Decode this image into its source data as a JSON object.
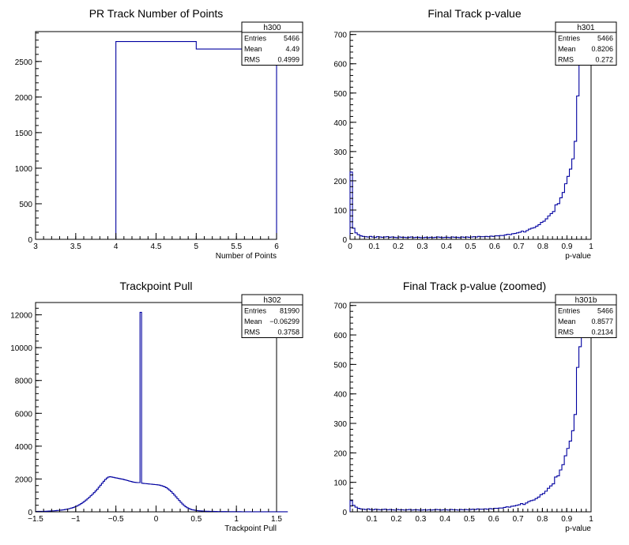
{
  "chart_data": [
    {
      "type": "histogram",
      "title": "PR Track Number of Points",
      "xlabel": "Number of Points",
      "ylabel": "",
      "xlim": [
        3,
        6
      ],
      "ylim": [
        0,
        2920
      ],
      "xticks": [
        "3",
        "3.5",
        "4",
        "4.5",
        "5",
        "5.5",
        "6"
      ],
      "yticks": [
        "0",
        "500",
        "1000",
        "1500",
        "2000",
        "2500"
      ],
      "bins": [
        {
          "x0": 4,
          "x1": 5,
          "count": 2780
        },
        {
          "x0": 5,
          "x1": 6,
          "count": 2675
        }
      ],
      "stats": {
        "name": "h300",
        "entries": "5466",
        "mean": "4.49",
        "rms": "0.4999"
      }
    },
    {
      "type": "histogram",
      "title": "Final Track p-value",
      "xlabel": "p-value",
      "ylabel": "",
      "xlim": [
        0,
        1
      ],
      "ylim": [
        0,
        710
      ],
      "xticks": [
        "0",
        "0.1",
        "0.2",
        "0.3",
        "0.4",
        "0.5",
        "0.6",
        "0.7",
        "0.8",
        "0.9",
        "1"
      ],
      "yticks": [
        "0",
        "100",
        "200",
        "300",
        "400",
        "500",
        "600",
        "700"
      ],
      "bin_width": 0.01,
      "counts": [
        230,
        38,
        22,
        16,
        12,
        10,
        9,
        8,
        10,
        8,
        7,
        9,
        8,
        7,
        8,
        9,
        7,
        8,
        7,
        6,
        8,
        7,
        7,
        6,
        7,
        8,
        6,
        7,
        7,
        6,
        6,
        7,
        6,
        7,
        6,
        7,
        8,
        7,
        6,
        7,
        7,
        6,
        8,
        7,
        7,
        6,
        8,
        7,
        8,
        7,
        8,
        9,
        8,
        10,
        9,
        9,
        10,
        9,
        11,
        10,
        12,
        12,
        13,
        13,
        15,
        17,
        16,
        19,
        20,
        22,
        24,
        28,
        25,
        30,
        35,
        38,
        40,
        45,
        50,
        58,
        62,
        70,
        80,
        88,
        95,
        118,
        122,
        142,
        160,
        190,
        215,
        240,
        275,
        335,
        490,
        600,
        760,
        760,
        760,
        760
      ],
      "stats": {
        "name": "h301",
        "entries": "5466",
        "mean": "0.8206",
        "rms": "0.272"
      }
    },
    {
      "type": "histogram",
      "title": "Trackpoint Pull",
      "xlabel": "Trackpoint Pull",
      "ylabel": "",
      "xlim": [
        -1.5,
        1.5
      ],
      "ylim": [
        0,
        12750
      ],
      "xticks": [
        "−1.5",
        "−1",
        "−0.5",
        "0",
        "0.5",
        "1",
        "1.5"
      ],
      "yticks": [
        "0",
        "2000",
        "4000",
        "6000",
        "8000",
        "10000",
        "12000"
      ],
      "bin_width": 0.02,
      "counts": [
        20,
        25,
        25,
        30,
        30,
        35,
        35,
        40,
        45,
        50,
        55,
        60,
        70,
        80,
        90,
        100,
        110,
        125,
        140,
        160,
        180,
        205,
        230,
        260,
        300,
        340,
        390,
        440,
        500,
        570,
        640,
        720,
        800,
        890,
        980,
        1070,
        1170,
        1270,
        1380,
        1500,
        1620,
        1740,
        1860,
        1970,
        2060,
        2120,
        2140,
        2120,
        2100,
        2080,
        2060,
        2040,
        2020,
        2000,
        1980,
        1950,
        1930,
        1900,
        1870,
        1850,
        1820,
        1800,
        1790,
        1780,
        1780,
        12150,
        1740,
        1730,
        1720,
        1710,
        1700,
        1690,
        1680,
        1670,
        1660,
        1650,
        1640,
        1620,
        1590,
        1560,
        1520,
        1470,
        1400,
        1320,
        1230,
        1130,
        1020,
        910,
        800,
        690,
        580,
        480,
        390,
        310,
        250,
        200,
        160,
        130,
        110,
        90,
        75,
        65,
        55,
        50,
        45,
        40,
        35,
        32,
        30,
        28,
        25,
        22,
        20,
        18,
        17,
        16,
        15,
        14,
        13,
        12,
        11,
        10,
        10,
        9,
        8,
        8,
        7,
        7,
        6,
        6,
        5,
        5,
        5,
        4,
        4,
        4,
        3,
        3,
        3,
        3,
        3,
        2,
        2,
        2,
        2,
        2,
        2,
        2,
        2,
        2,
        2,
        2,
        2,
        2,
        2,
        2,
        2,
        2
      ],
      "stats": {
        "name": "h302",
        "entries": "81990",
        "mean": "−0.06299",
        "rms": "0.3758"
      }
    },
    {
      "type": "histogram",
      "title": "Final Track p-value (zoomed)",
      "xlabel": "p-value",
      "ylabel": "",
      "xlim": [
        0.01,
        1
      ],
      "ylim": [
        0,
        710
      ],
      "xticks": [
        "0.1",
        "0.2",
        "0.3",
        "0.4",
        "0.5",
        "0.6",
        "0.7",
        "0.8",
        "0.9",
        "1"
      ],
      "yticks": [
        "0",
        "100",
        "200",
        "300",
        "400",
        "500",
        "600",
        "700"
      ],
      "bin_width": 0.01,
      "counts": [
        38,
        22,
        16,
        12,
        10,
        9,
        8,
        10,
        8,
        7,
        9,
        8,
        7,
        8,
        9,
        7,
        8,
        7,
        6,
        8,
        7,
        7,
        6,
        7,
        8,
        6,
        7,
        7,
        6,
        6,
        7,
        6,
        7,
        6,
        7,
        8,
        7,
        6,
        7,
        7,
        6,
        8,
        7,
        7,
        6,
        8,
        7,
        8,
        7,
        8,
        9,
        8,
        10,
        9,
        9,
        10,
        9,
        11,
        10,
        12,
        12,
        13,
        13,
        15,
        17,
        16,
        19,
        20,
        22,
        24,
        28,
        25,
        30,
        35,
        38,
        40,
        45,
        50,
        58,
        62,
        70,
        80,
        88,
        95,
        118,
        122,
        142,
        160,
        190,
        215,
        240,
        275,
        330,
        490,
        560,
        600,
        760,
        760,
        760
      ],
      "stats": {
        "name": "h301b",
        "entries": "5466",
        "mean": "0.8577",
        "rms": "0.2134"
      }
    }
  ],
  "stat_labels": {
    "entries": "Entries",
    "mean": "Mean",
    "rms": "RMS"
  },
  "colors": {
    "line": "#0000a0",
    "axis": "#000000",
    "frame": "#000000",
    "background": "#ffffff"
  }
}
